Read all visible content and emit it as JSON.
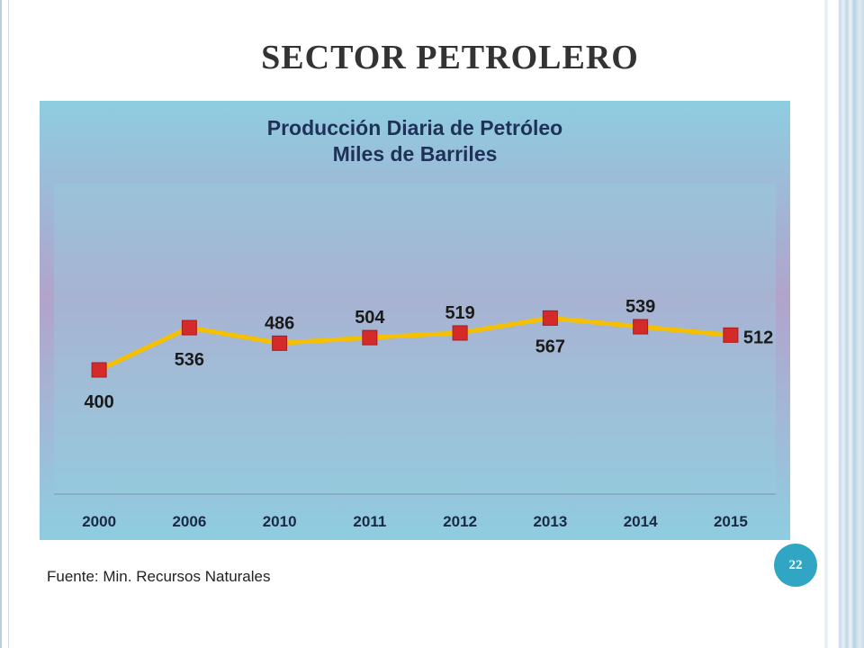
{
  "slide": {
    "title": "SECTOR PETROLERO",
    "source": "Fuente: Min. Recursos Naturales",
    "page_number": "22"
  },
  "colors": {
    "line": "#f5c000",
    "marker": "#d42a2a",
    "title_text": "#1f3158",
    "badge": "#31a6c4"
  },
  "chart_data": {
    "type": "line",
    "title": "Producción Diaria de Petróleo",
    "subtitle": "Miles de Barriles",
    "categories": [
      "2000",
      "2006",
      "2010",
      "2011",
      "2012",
      "2013",
      "2014",
      "2015"
    ],
    "values": [
      400,
      536,
      486,
      504,
      519,
      567,
      539,
      512
    ],
    "ylim": [
      0,
      1000
    ],
    "grid": false,
    "legend": false,
    "data_labels": true
  }
}
